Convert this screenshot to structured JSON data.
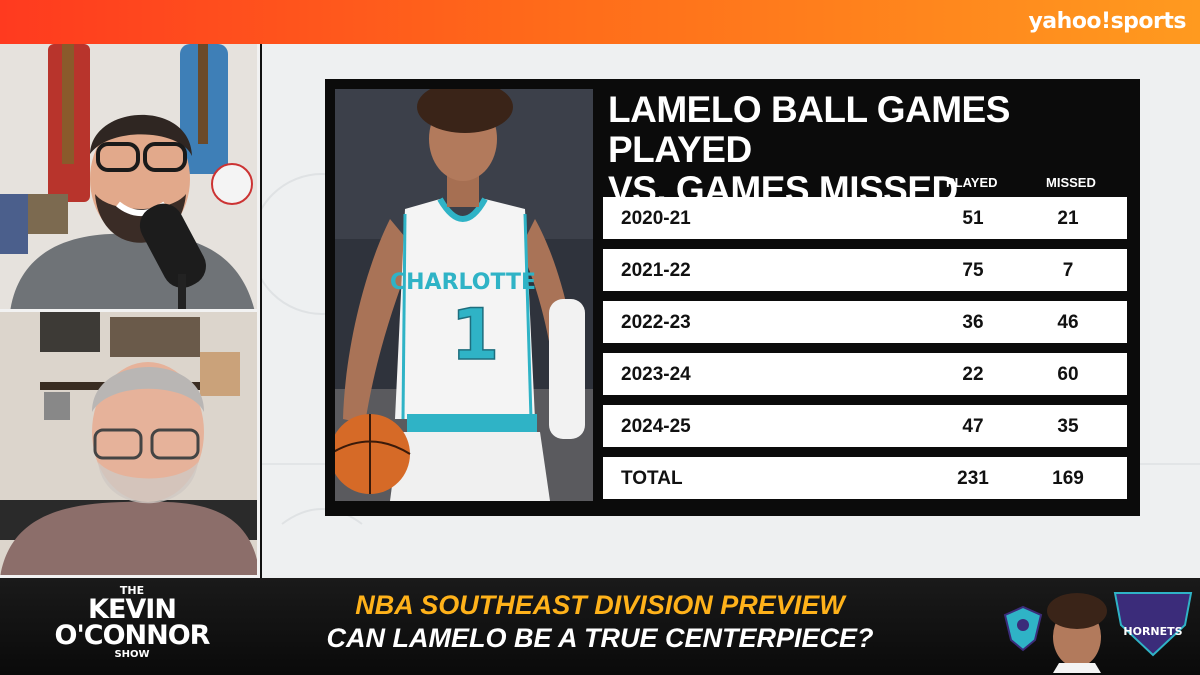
{
  "brand": {
    "text": "yahoo!sports"
  },
  "graphic": {
    "title_line1": "LAMELO BALL GAMES PLAYED",
    "title_line2": "VS. GAMES MISSED",
    "col_played": "PLAYED",
    "col_missed": "MISSED",
    "jersey_text": "CHARLOTTE",
    "jersey_number": "1",
    "rows": [
      {
        "season": "2020-21",
        "played": "51",
        "missed": "21"
      },
      {
        "season": "2021-22",
        "played": "75",
        "missed": "7"
      },
      {
        "season": "2022-23",
        "played": "36",
        "missed": "46"
      },
      {
        "season": "2023-24",
        "played": "22",
        "missed": "60"
      },
      {
        "season": "2024-25",
        "played": "47",
        "missed": "35"
      },
      {
        "season": "TOTAL",
        "played": "231",
        "missed": "169"
      }
    ]
  },
  "show": {
    "the": "THE",
    "kevin": "KEVIN",
    "oconnor": "O'CONNOR",
    "show": "SHOW"
  },
  "headline": {
    "line1": "NBA SOUTHEAST DIVISION PREVIEW",
    "line2": "CAN LAMELO BE A TRUE CENTERPIECE?"
  },
  "team_logo_text": "HORNETS",
  "colors": {
    "accent_orange": "#ff6a1a",
    "headline_yellow": "#ffb21a",
    "hornets_teal": "#2fb3c6",
    "hornets_purple": "#3b2c7a"
  }
}
